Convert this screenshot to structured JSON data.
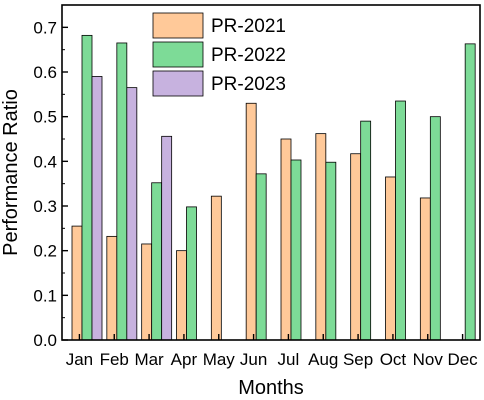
{
  "chart_data": {
    "type": "bar",
    "title": "",
    "xlabel": "Months",
    "ylabel": "Performance Ratio",
    "categories": [
      "Jan",
      "Feb",
      "Mar",
      "Apr",
      "May",
      "Jun",
      "Jul",
      "Aug",
      "Sep",
      "Oct",
      "Nov",
      "Dec"
    ],
    "ylim": [
      0,
      0.75
    ],
    "yticks": [
      "0.0",
      "0.1",
      "0.2",
      "0.3",
      "0.4",
      "0.5",
      "0.6",
      "0.7"
    ],
    "legend_position": "top-left",
    "grid": false,
    "series": [
      {
        "name": "PR-2021",
        "color": "#FFC999",
        "values": [
          0.255,
          0.232,
          0.215,
          0.2,
          0.322,
          0.53,
          0.45,
          0.462,
          0.417,
          0.365,
          0.318,
          null
        ]
      },
      {
        "name": "PR-2022",
        "color": "#7DDB97",
        "values": [
          0.682,
          0.665,
          0.352,
          0.298,
          null,
          0.372,
          0.403,
          0.398,
          0.49,
          0.535,
          0.5,
          0.663
        ]
      },
      {
        "name": "PR-2023",
        "color": "#C7B2DF",
        "values": [
          0.59,
          0.565,
          0.456,
          null,
          null,
          null,
          null,
          null,
          null,
          null,
          null,
          null
        ]
      }
    ]
  }
}
